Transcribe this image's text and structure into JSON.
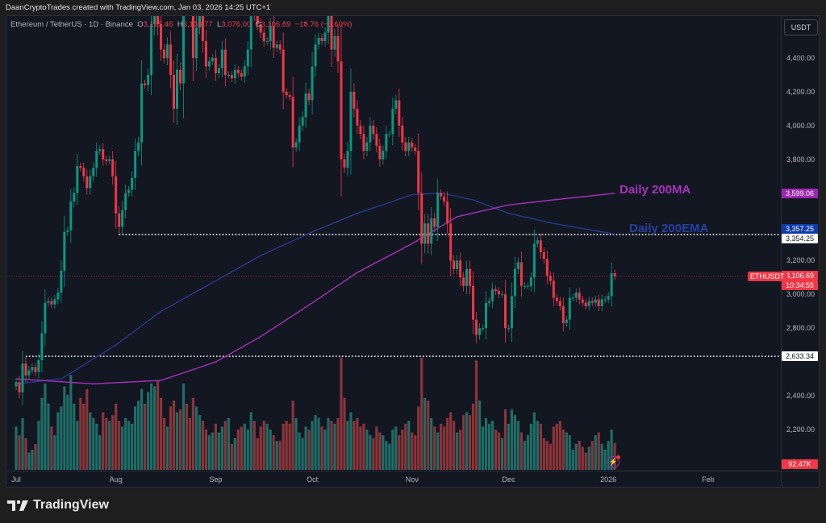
{
  "attribution": "DaanCryptoTrades created with TradingView.com, Jan 03, 2026 14:25 UTC+1",
  "legend": {
    "symbol": "Ethereum / TetherUS · 1D · Binance",
    "o_label": "O",
    "o": "3,125.46",
    "h_label": "H",
    "h": "3,136.77",
    "l_label": "L",
    "l": "3,076.00",
    "c_label": "C",
    "c": "3,106.69",
    "change": "−18.76 (−0.60%)"
  },
  "currency_button": "USDT",
  "brand": "TradingView",
  "colors": {
    "up": "#089981",
    "down": "#f23645",
    "ma": "#9c27b0",
    "ema": "#1e3a8a",
    "bg": "#131722"
  },
  "chart_data": {
    "type": "candlestick",
    "start_date": "2025-07-01",
    "interval": "1D",
    "close": [
      2480,
      2420,
      2590,
      2520,
      2550,
      2570,
      2540,
      2610,
      2770,
      2950,
      2960,
      2940,
      2970,
      3010,
      3140,
      3370,
      3380,
      3550,
      3600,
      3760,
      3750,
      3700,
      3630,
      3700,
      3750,
      3850,
      3860,
      3800,
      3790,
      3800,
      3700,
      3480,
      3400,
      3500,
      3600,
      3620,
      3690,
      3850,
      3900,
      4250,
      4240,
      4300,
      4600,
      4750,
      4600,
      4450,
      4400,
      4480,
      4300,
      4100,
      4330,
      4250,
      4800,
      4780,
      4750,
      4400,
      4580,
      4650,
      4500,
      4350,
      4380,
      4400,
      4310,
      4340,
      4450,
      4300,
      4300,
      4280,
      4330,
      4310,
      4290,
      4350,
      4450,
      4700,
      4650,
      4600,
      4550,
      4500,
      4500,
      4590,
      4460,
      4480,
      4450,
      4200,
      4180,
      4170,
      3870,
      3900,
      4000,
      4050,
      4190,
      4150,
      4350,
      4480,
      4520,
      4500,
      4550,
      4700,
      4450,
      4530,
      4380,
      3800,
      3750,
      3850,
      4200,
      4100,
      4000,
      3950,
      3850,
      3900,
      4000,
      3950,
      3880,
      3800,
      3850,
      3950,
      3950,
      4100,
      4150,
      4000,
      3900,
      3850,
      3900,
      3870,
      3850,
      3600,
      3300,
      3420,
      3300,
      3450,
      3400,
      3600,
      3580,
      3550,
      3420,
      3200,
      3150,
      3200,
      3100,
      3050,
      3150,
      3050,
      2850,
      2760,
      2800,
      2800,
      2950,
      2960,
      3030,
      3020,
      3000,
      3000,
      2800,
      2800,
      2990,
      3150,
      3190,
      3050,
      3050,
      3050,
      3100,
      3300,
      3320,
      3250,
      3210,
      3110,
      3080,
      2980,
      2960,
      2930,
      2830,
      2850,
      2980,
      2980,
      3010,
      2970,
      2950,
      2930,
      2960,
      2950,
      2970,
      2930,
      2970,
      2970,
      2990,
      3125.46,
      3106.69
    ],
    "volume_k": [
      150,
      120,
      180,
      110,
      60,
      70,
      90,
      170,
      250,
      300,
      230,
      150,
      120,
      200,
      220,
      290,
      260,
      330,
      230,
      170,
      250,
      230,
      280,
      200,
      180,
      160,
      120,
      200,
      180,
      170,
      190,
      230,
      170,
      150,
      180,
      170,
      160,
      220,
      240,
      280,
      230,
      270,
      300,
      290,
      310,
      250,
      180,
      150,
      220,
      240,
      200,
      210,
      300,
      230,
      180,
      250,
      220,
      190,
      170,
      140,
      120,
      130,
      160,
      130,
      150,
      170,
      180,
      90,
      110,
      140,
      150,
      160,
      140,
      200,
      170,
      110,
      150,
      170,
      160,
      140,
      120,
      100,
      100,
      160,
      170,
      160,
      240,
      180,
      130,
      110,
      150,
      140,
      170,
      190,
      180,
      150,
      140,
      180,
      170,
      160,
      180,
      390,
      250,
      170,
      200,
      170,
      180,
      150,
      160,
      140,
      120,
      110,
      150,
      130,
      120,
      100,
      90,
      140,
      150,
      120,
      140,
      160,
      170,
      130,
      120,
      220,
      390,
      250,
      240,
      180,
      150,
      130,
      160,
      150,
      180,
      200,
      170,
      130,
      140,
      190,
      200,
      190,
      230,
      380,
      240,
      150,
      180,
      160,
      170,
      140,
      130,
      110,
      210,
      160,
      210,
      190,
      170,
      130,
      100,
      120,
      160,
      200,
      170,
      160,
      110,
      100,
      90,
      150,
      160,
      170,
      140,
      130,
      120,
      70,
      90,
      100,
      80,
      60,
      80,
      100,
      120,
      130,
      90,
      70,
      100,
      140,
      92.47
    ],
    "ma200": [
      [
        "2025-07-01",
        2500
      ],
      [
        "2025-07-25",
        2470
      ],
      [
        "2025-08-15",
        2490
      ],
      [
        "2025-09-01",
        2600
      ],
      [
        "2025-09-15",
        2750
      ],
      [
        "2025-10-01",
        2950
      ],
      [
        "2025-10-15",
        3130
      ],
      [
        "2025-11-01",
        3300
      ],
      [
        "2025-11-15",
        3460
      ],
      [
        "2025-12-01",
        3530
      ],
      [
        "2025-12-15",
        3560
      ],
      [
        "2026-01-03",
        3599.06
      ]
    ],
    "ema200": [
      [
        "2025-07-01",
        2470
      ],
      [
        "2025-07-15",
        2500
      ],
      [
        "2025-08-01",
        2700
      ],
      [
        "2025-08-15",
        2900
      ],
      [
        "2025-09-01",
        3080
      ],
      [
        "2025-09-15",
        3230
      ],
      [
        "2025-10-01",
        3370
      ],
      [
        "2025-10-15",
        3480
      ],
      [
        "2025-11-01",
        3590
      ],
      [
        "2025-11-10",
        3600
      ],
      [
        "2025-11-20",
        3560
      ],
      [
        "2025-12-01",
        3480
      ],
      [
        "2025-12-15",
        3420
      ],
      [
        "2026-01-03",
        3357.25
      ]
    ],
    "hlines": [
      {
        "price": 3354.25,
        "from": "2025-08-02",
        "label": "3,354.25"
      },
      {
        "price": 2633.34,
        "from": "2025-07-04",
        "label": "2,633.34"
      }
    ],
    "annotations": [
      {
        "text": "Daily 200MA",
        "color": "#9c27b0"
      },
      {
        "text": "Daily 200EMA",
        "color": "#1e3a8a"
      }
    ],
    "y_ticks": [
      {
        "v": 4400,
        "label": "4,400.00"
      },
      {
        "v": 4200,
        "label": "4,200.00"
      },
      {
        "v": 4000,
        "label": "4,000.00"
      },
      {
        "v": 3800,
        "label": "3,800.00"
      },
      {
        "v": 3200,
        "label": "3,200.00"
      },
      {
        "v": 3000,
        "label": "3,000.00"
      },
      {
        "v": 2800,
        "label": "2,800.00"
      },
      {
        "v": 2400,
        "label": "2,400.00"
      },
      {
        "v": 2200,
        "label": "2,200.00"
      }
    ],
    "x_ticks": [
      {
        "date": "2025-07-01",
        "label": "Jul"
      },
      {
        "date": "2025-08-01",
        "label": "Aug"
      },
      {
        "date": "2025-09-01",
        "label": "Sep"
      },
      {
        "date": "2025-10-01",
        "label": "Oct"
      },
      {
        "date": "2025-11-01",
        "label": "Nov"
      },
      {
        "date": "2025-12-01",
        "label": "Dec"
      },
      {
        "date": "2026-01-01",
        "label": "2026"
      },
      {
        "date": "2026-02-01",
        "label": "Feb"
      }
    ],
    "price_tags": {
      "ma": "3,599.06",
      "ema": "3,357.25",
      "last": "3,106.69",
      "countdown": "10:34:55",
      "symbol": "ETHUSDT",
      "volume": "92.47K"
    },
    "last_price": 3106.69
  }
}
